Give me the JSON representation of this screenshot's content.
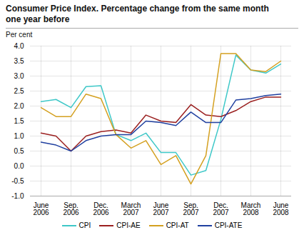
{
  "chart_data": {
    "type": "line",
    "title": "Consumer Price Index. Percentage change from the same month\none year before",
    "ylabel": "Per cent",
    "categories": [
      "June\n2006",
      null,
      "Sep.\n2006",
      null,
      "Dec.\n2006",
      null,
      "March\n2007",
      null,
      "June\n2007",
      null,
      "Sep.\n2007",
      null,
      "Dec.\n2007",
      null,
      "March\n2008",
      null,
      "June\n2008"
    ],
    "series": [
      {
        "name": "CPI",
        "color": "#3ec8c8",
        "values": [
          2.15,
          2.22,
          1.95,
          2.65,
          2.68,
          1.05,
          0.85,
          1.1,
          0.45,
          0.45,
          -0.3,
          -0.15,
          1.55,
          3.7,
          3.2,
          3.1,
          3.4
        ]
      },
      {
        "name": "CPI-AE",
        "color": "#9b2020",
        "values": [
          1.1,
          1.0,
          0.5,
          1.0,
          1.15,
          1.2,
          1.1,
          1.7,
          1.5,
          1.45,
          2.05,
          1.7,
          1.65,
          1.85,
          2.15,
          2.3,
          2.3
        ]
      },
      {
        "name": "CPI-AT",
        "color": "#d4a020",
        "values": [
          1.95,
          1.65,
          1.65,
          2.4,
          2.25,
          1.05,
          0.6,
          0.85,
          0.05,
          0.35,
          -0.6,
          0.35,
          3.75,
          3.75,
          3.2,
          3.15,
          3.5
        ]
      },
      {
        "name": "CPI-ATE",
        "color": "#2040a0",
        "values": [
          0.8,
          0.7,
          0.5,
          0.85,
          1.0,
          1.05,
          1.05,
          1.5,
          1.45,
          1.35,
          1.8,
          1.45,
          1.45,
          2.2,
          2.25,
          2.35,
          2.4
        ]
      }
    ],
    "ylim": [
      -1.0,
      4.0
    ],
    "yticks": [
      {
        "value": -1.0,
        "label": "-1.0"
      },
      -0.5,
      {
        "value": 0.0,
        "label": "0.0"
      },
      0.5,
      {
        "value": 1.0,
        "label": "1.0"
      },
      1.5,
      {
        "value": 2.0,
        "label": "2.0"
      },
      2.5,
      {
        "value": 3.0,
        "label": "3.0"
      },
      3.5,
      {
        "value": 4.0,
        "label": "4.0"
      }
    ],
    "grid": true,
    "legend": "bottom"
  }
}
